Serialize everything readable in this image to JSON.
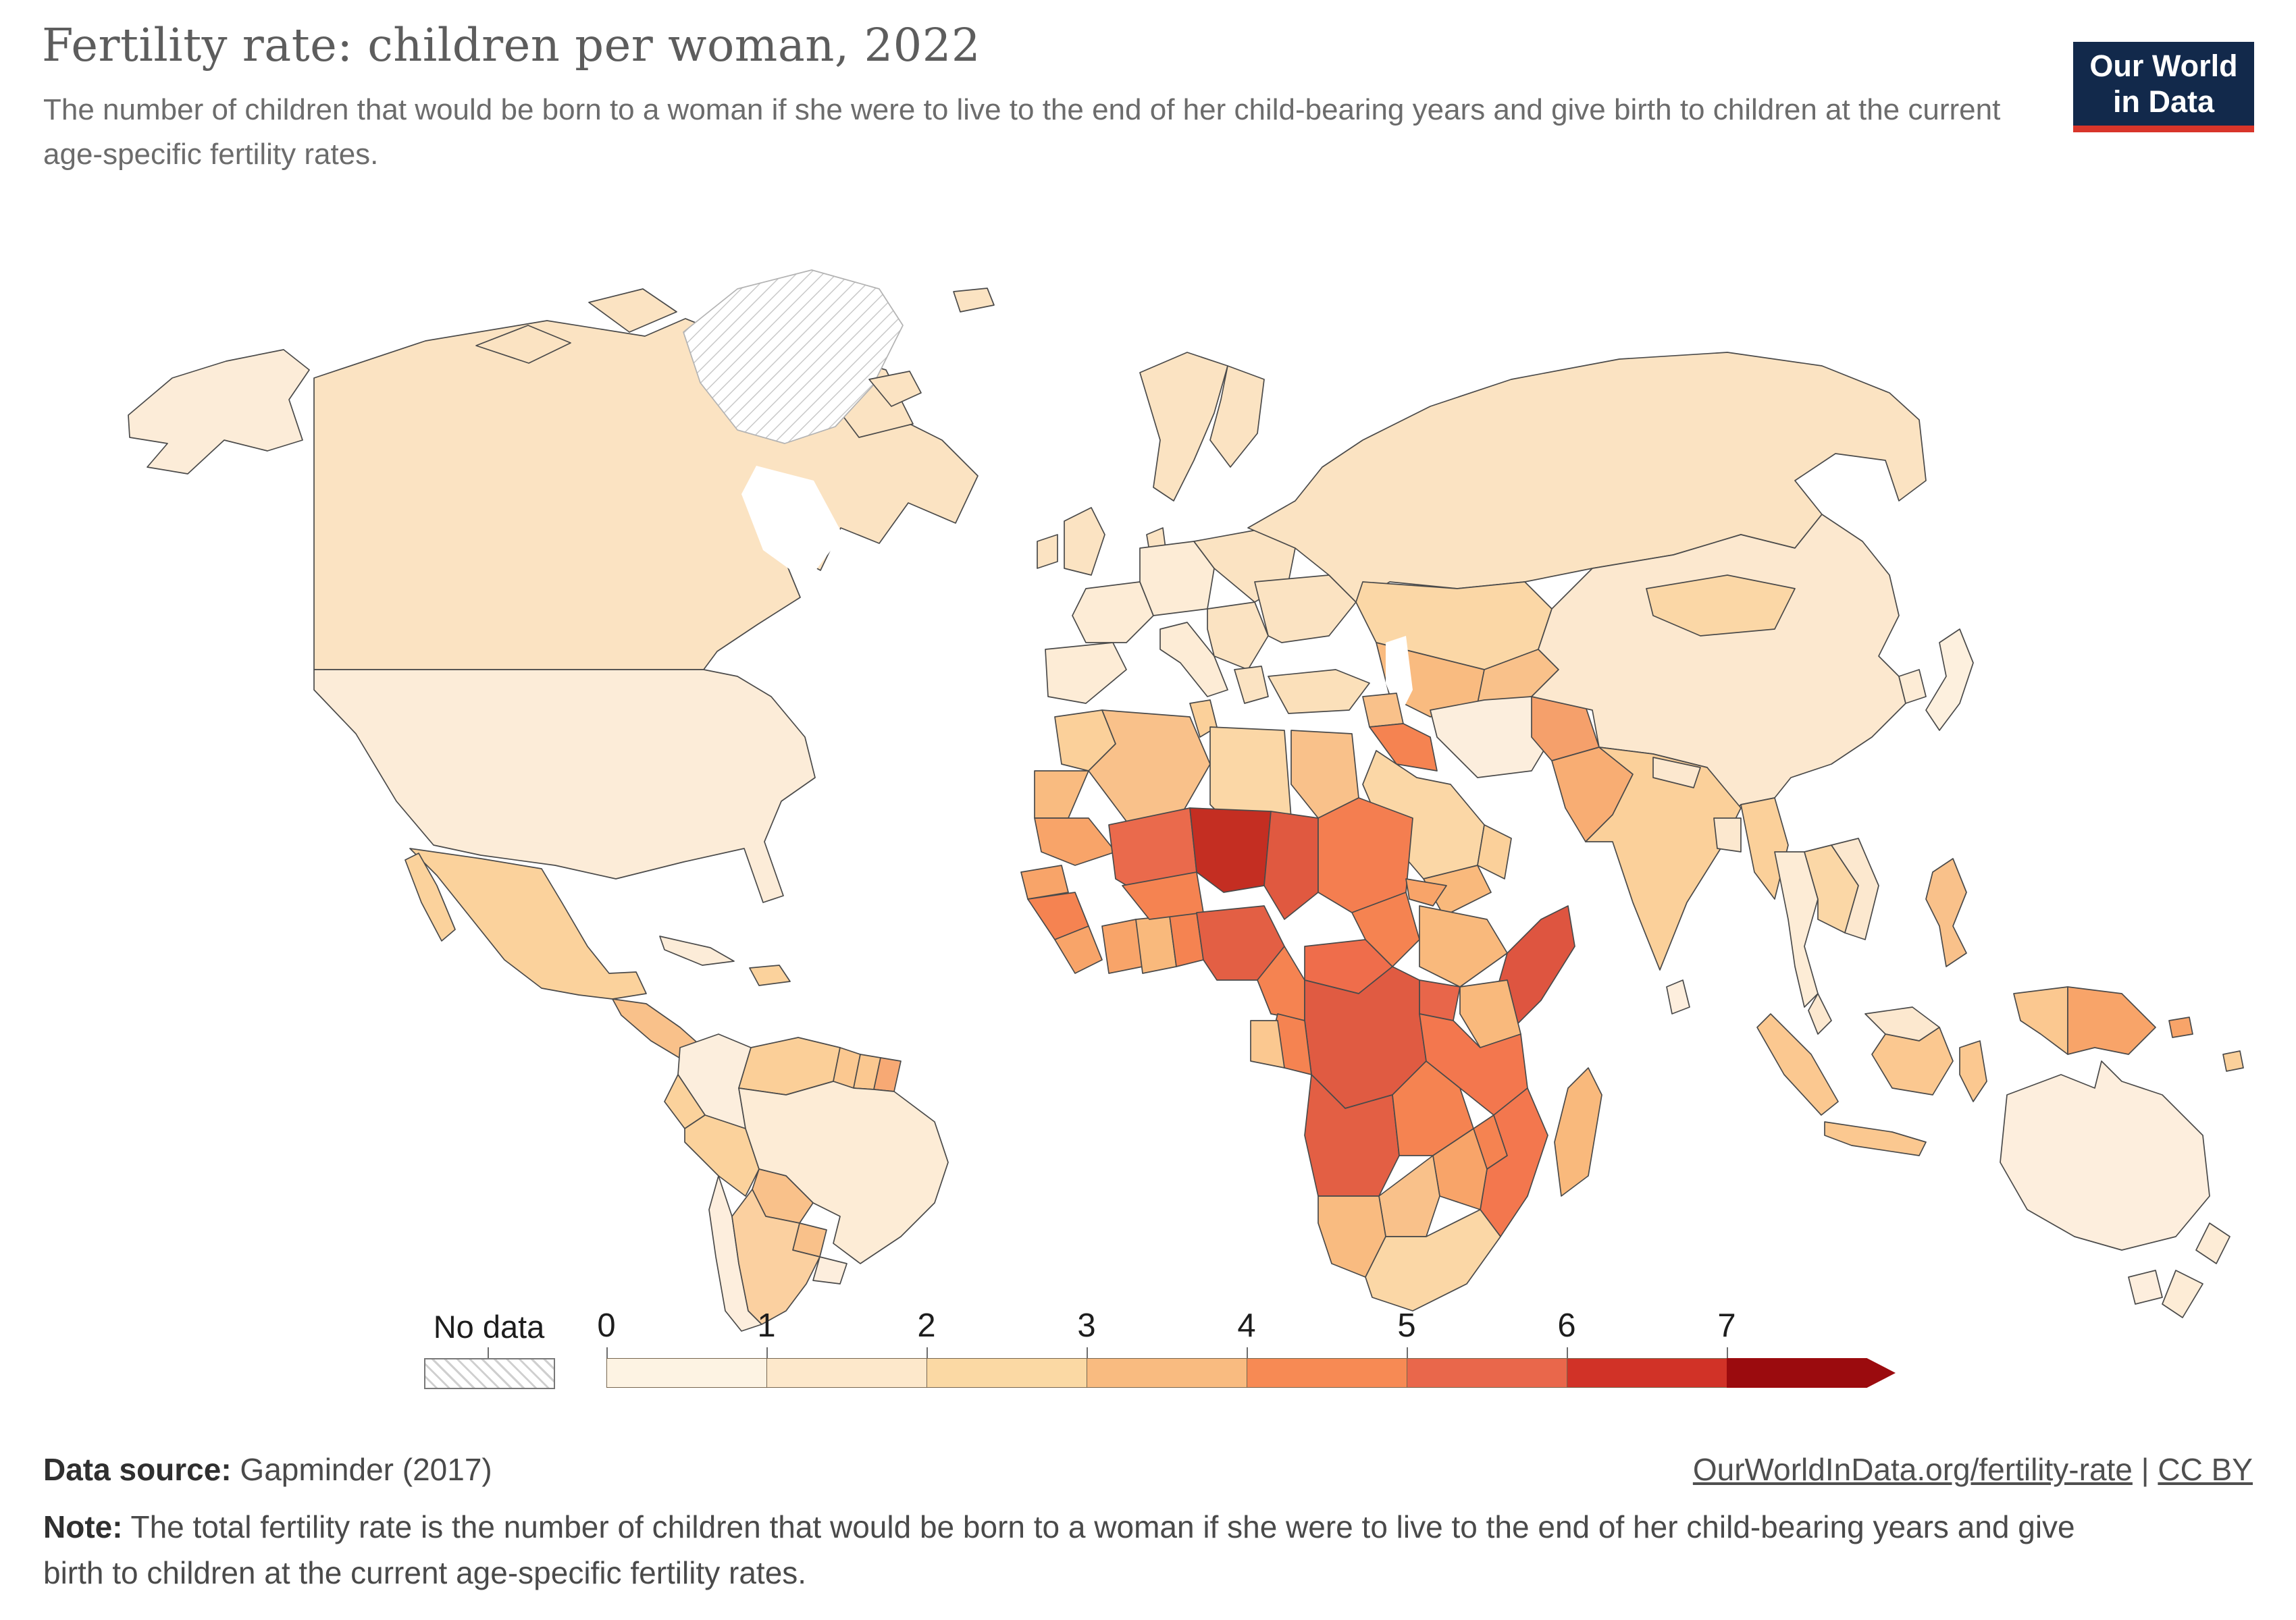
{
  "header": {
    "title": "Fertility rate: children per woman, 2022",
    "subtitle": "The number of children that would be born to a woman if she were to live to the end of her child-bearing years and give birth to children at the current age-specific fertility rates."
  },
  "logo": {
    "line1": "Our World",
    "line2": "in Data",
    "bg_color": "#12294b",
    "accent_color": "#d8352a"
  },
  "legend": {
    "no_data_label": "No data",
    "tick_labels": [
      "0",
      "1",
      "2",
      "3",
      "4",
      "5",
      "6",
      "7"
    ],
    "bin_colors": [
      "#fdf3e3",
      "#fde8cb",
      "#fbd9a4",
      "#f9bb80",
      "#f78a54",
      "#e9674b",
      "#d13227",
      "#9b0b0e"
    ],
    "hatch_line_color": "#cfcfcf",
    "arrow_end": true
  },
  "map": {
    "type": "choropleth-world-map",
    "metric": "Fertility rate (children per woman)",
    "year": "2022",
    "no_data_regions": [
      "greenland"
    ],
    "region_colors": {
      "alaska": "#fcecd8",
      "canada": "#fbe3c2",
      "arctic1": "#fbe3c2",
      "arctic2": "#fbe3c2",
      "arctic3": "#fbe3c2",
      "arctic4": "#fbe3c2",
      "baffin": "#fbe3c2",
      "greenland": "no-data",
      "iceland": "#fbe3c2",
      "svalbard": "#fbe3c2",
      "usa": "#fcecd8",
      "mexico": "#fbd29c",
      "baja": "#fbd29c",
      "camerica": "#f9c18a",
      "cuba": "#fcecd8",
      "hispaniola": "#fbd29c",
      "colombia": "#fceedd",
      "venezuela": "#fbcf98",
      "guyana": "#fbc890",
      "suriname": "#fbc890",
      "frguiana": "#f7a974",
      "ecuador": "#fbd29c",
      "peru": "#fbd29c",
      "brazil": "#fdecd6",
      "bolivia": "#f9c18a",
      "paraguay": "#f9c18a",
      "chile": "#fdeedd",
      "argentina": "#fbd0a0",
      "uruguay": "#fdeedd",
      "uk": "#fbe3c2",
      "ireland": "#fbe3c2",
      "iberia": "#fdecd6",
      "france": "#fdecd6",
      "norway_sweden": "#fbe3c2",
      "finland": "#fbe3c2",
      "denmark": "#fbe3c2",
      "germany_central": "#fdecd6",
      "italy": "#fdecd6",
      "balkans": "#fbe3c2",
      "greece": "#fbe3c2",
      "easteurope": "#fbe3c2",
      "ukraine": "#fbe3c2",
      "russia": "#fbe3c2",
      "kazakhstan": "#fbd7a6",
      "centralasia": "#f9bb80",
      "kyrgyz_tajik": "#f9c18a",
      "turkey": "#fbe0ba",
      "syria": "#f9c18a",
      "iraq": "#f58351",
      "iran": "#fceedd",
      "afghanistan": "#f5a06b",
      "pakistan": "#f8ad73",
      "saudi": "#fbd7a6",
      "yemen": "#f9b97c",
      "oman": "#fbd09a",
      "india": "#fbd09a",
      "nepal": "#fce8cf",
      "bangladesh": "#fce8cf",
      "srilanka": "#fdeedd",
      "myanmar": "#fbd09a",
      "thailand": "#fdecd6",
      "indochina": "#fbd7a6",
      "vietnam": "#fce8cf",
      "malaysia_pen": "#fce8cf",
      "sumatra": "#fbc890",
      "java": "#fbc890",
      "borneo_my": "#fce8cf",
      "borneo_id": "#fbc890",
      "sulawesi": "#fbc890",
      "philippines": "#f9c18a",
      "wpapua": "#fbc890",
      "png": "#f8a469",
      "china": "#fce8cf",
      "mongolia": "#fbd7a6",
      "korea": "#fdecd6",
      "japan": "#fdf0de",
      "australia": "#fdeedd",
      "tasmania": "#fdeedd",
      "nz": "#fdecd6",
      "solomon": "#f8a469",
      "fiji": "#fbd09a",
      "morocco": "#fbd09a",
      "wsahara": "#f9bb80",
      "mauritania": "#f8a469",
      "algeria": "#f9c18a",
      "tunisia": "#fbd09a",
      "libya": "#fbd7a6",
      "egypt": "#f9c18a",
      "mali": "#ea6a4c",
      "niger": "#c42e22",
      "chad": "#e05940",
      "sudan": "#f47e50",
      "senegal": "#f8a469",
      "guinea": "#f58351",
      "sierraliberia": "#f8a469",
      "ivorycoast": "#f8a469",
      "ghana": "#f9b97c",
      "togobenin": "#f58351",
      "burkina": "#f58351",
      "nigeria": "#e35f44",
      "cameroon": "#f58351",
      "car": "#ef6d4b",
      "southsudan": "#f58351",
      "eritrea": "#f8a469",
      "ethiopia": "#f9b97c",
      "somalia": "#de5540",
      "kenya": "#f9b97c",
      "uganda": "#e8664a",
      "drc": "#e05b42",
      "congo": "#f58351",
      "gabon": "#fbc890",
      "angola": "#e35f44",
      "zambia": "#f58351",
      "tanzania": "#f3774e",
      "malawi": "#f58351",
      "mozambique": "#f3774e",
      "zimbabwe": "#f8a469",
      "botswana": "#f9c18a",
      "namibia": "#f9bb80",
      "southafrica": "#fbd7a6",
      "madagascar": "#f9b97c"
    }
  },
  "footer": {
    "source_label": "Data source:",
    "source_value": " Gapminder (2017)",
    "link_url": "OurWorldInData.org/fertility-rate",
    "separator": " | ",
    "license": "CC BY",
    "note_label": "Note:",
    "note_text": " The total fertility rate is the number of children that would be born to a woman if she were to live to the end of her child-bearing years and give birth to children at the current age-specific fertility rates."
  }
}
